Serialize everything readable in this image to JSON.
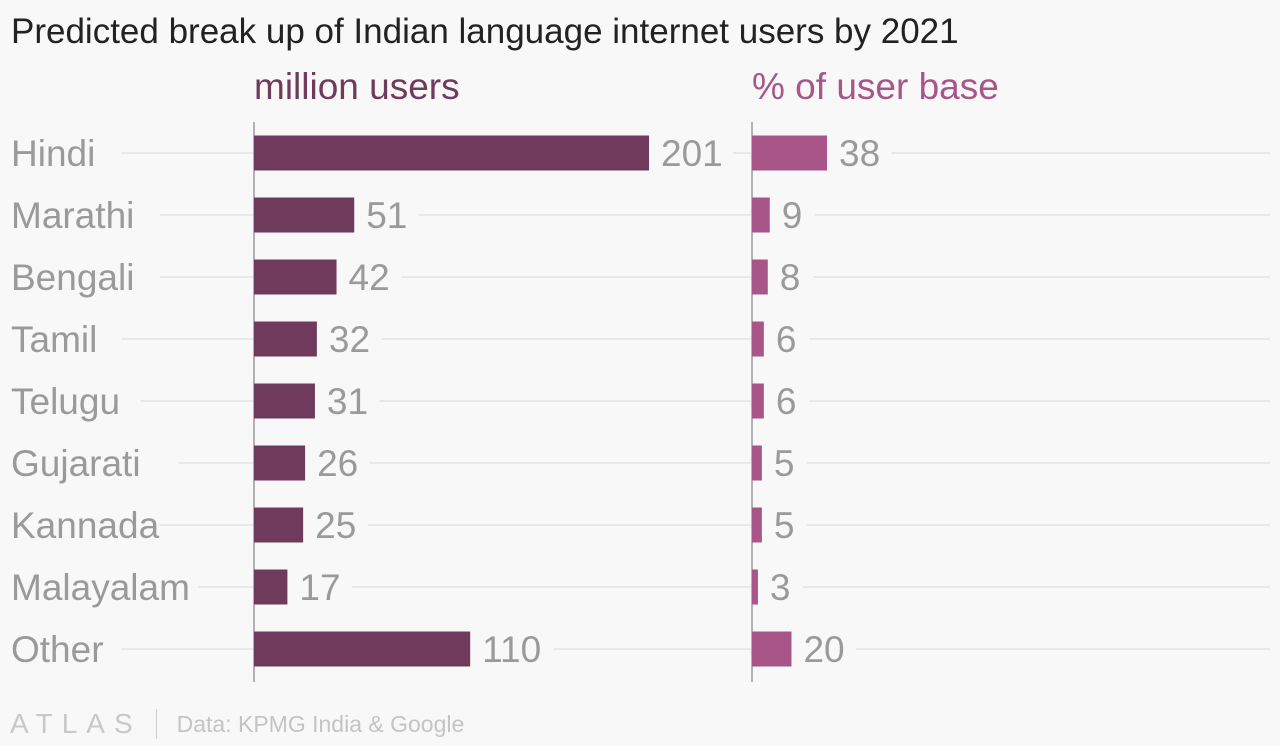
{
  "title": "Predicted break up of Indian language internet users by 2021",
  "colors": {
    "users_bar": "#6f3a5c",
    "share_bar": "#a8568a",
    "users_title": "#6f3a5c",
    "share_title": "#a8568a",
    "category_label": "#9a9a9a",
    "value_label": "#9a9a9a",
    "gridline": "#e8e8e8",
    "axis": "#9a9a9a"
  },
  "chart_data": [
    {
      "type": "bar",
      "orientation": "horizontal",
      "title": "million users",
      "categories": [
        "Hindi",
        "Marathi",
        "Bengali",
        "Tamil",
        "Telugu",
        "Gujarati",
        "Kannada",
        "Malayalam",
        "Other"
      ],
      "values": [
        201,
        51,
        42,
        32,
        31,
        26,
        25,
        17,
        110
      ],
      "xlim": [
        0,
        201
      ],
      "grid": true
    },
    {
      "type": "bar",
      "orientation": "horizontal",
      "title": "% of user base",
      "categories": [
        "Hindi",
        "Marathi",
        "Bengali",
        "Tamil",
        "Telugu",
        "Gujarati",
        "Kannada",
        "Malayalam",
        "Other"
      ],
      "values": [
        38,
        9,
        8,
        6,
        6,
        5,
        5,
        3,
        20
      ],
      "xlim": [
        0,
        38
      ],
      "grid": true
    }
  ],
  "footer": {
    "logo": "ATLAS",
    "source": "Data: KPMG India & Google"
  }
}
